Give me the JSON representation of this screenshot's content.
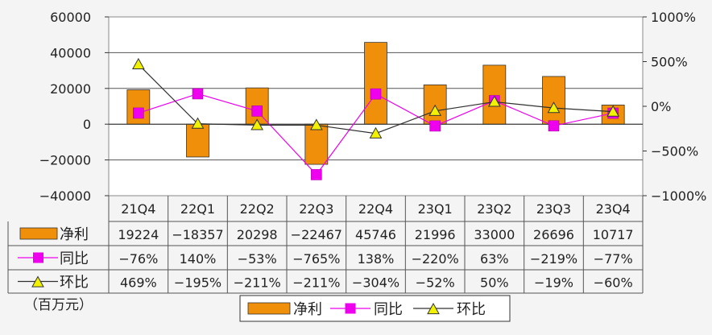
{
  "chart_data": {
    "type": "bar",
    "categories": [
      "21Q4",
      "22Q1",
      "22Q2",
      "22Q3",
      "22Q4",
      "23Q1",
      "23Q2",
      "23Q3",
      "23Q4"
    ],
    "ylim": [
      -40000,
      60000
    ],
    "y_ticks": [
      -40000,
      -20000,
      0,
      20000,
      40000,
      60000
    ],
    "y2lim": [
      -1000,
      1000
    ],
    "y2_ticks": [
      -1000,
      -500,
      0,
      500,
      1000
    ],
    "y2_tick_suffix": "%",
    "unit_label": "（百万元）",
    "grid": true,
    "legend_position": "bottom",
    "series": [
      {
        "name": "净利",
        "chart": "bar",
        "axis": "left",
        "color": "#f0900a",
        "values": [
          19224,
          -18357,
          20298,
          -22467,
          45746,
          21996,
          33000,
          26696,
          10717
        ],
        "labels": [
          "19224",
          "-18357",
          "20298",
          "-22467",
          "45746",
          "21996",
          "33000",
          "26696",
          "10717"
        ]
      },
      {
        "name": "同比",
        "chart": "line",
        "axis": "right",
        "color": "#ee00ee",
        "marker": "square",
        "values": [
          -76,
          140,
          -53,
          -765,
          138,
          -220,
          63,
          -219,
          -77
        ],
        "labels": [
          "-76%",
          "140%",
          "-53%",
          "-765%",
          "138%",
          "-220%",
          "63%",
          "-219%",
          "-77%"
        ]
      },
      {
        "name": "环比",
        "chart": "line",
        "axis": "right",
        "color": "#303030",
        "marker": "triangle",
        "marker_color": "#f2f200",
        "values": [
          469,
          -195,
          -211,
          -211,
          -304,
          -52,
          50,
          -19,
          -60
        ],
        "labels": [
          "469%",
          "-195%",
          "-211%",
          "-211%",
          "-304%",
          "-52%",
          "50%",
          "-19%",
          "-60%"
        ]
      }
    ]
  }
}
